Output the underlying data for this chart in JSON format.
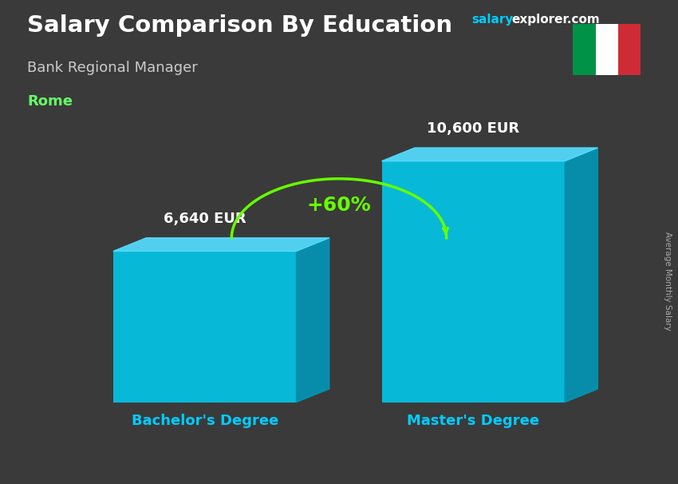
{
  "title": "Salary Comparison By Education",
  "subtitle": "Bank Regional Manager",
  "city": "Rome",
  "ylabel": "Average Monthly Salary",
  "categories": [
    "Bachelor's Degree",
    "Master's Degree"
  ],
  "values": [
    6640,
    10600
  ],
  "value_labels": [
    "6,640 EUR",
    "10,600 EUR"
  ],
  "bar_color_face": "#00CCEE",
  "bar_color_light": "#55DDFF",
  "bar_color_dark": "#0099BB",
  "pct_label": "+60%",
  "pct_color": "#66FF00",
  "title_color": "#FFFFFF",
  "subtitle_color": "#CCCCCC",
  "city_color": "#66FF66",
  "watermark_color_salary": "#00CCFF",
  "watermark_color_explorer": "#FFFFFF",
  "value_label_color": "#FFFFFF",
  "xlabel_color": "#00CCFF",
  "bg_color": "#3a3a3a",
  "ylim": [
    0,
    13000
  ],
  "flag_colors": [
    "#009246",
    "#FFFFFF",
    "#CE2B37"
  ],
  "bar_width": 0.3,
  "bar_positions": [
    0.28,
    0.72
  ]
}
